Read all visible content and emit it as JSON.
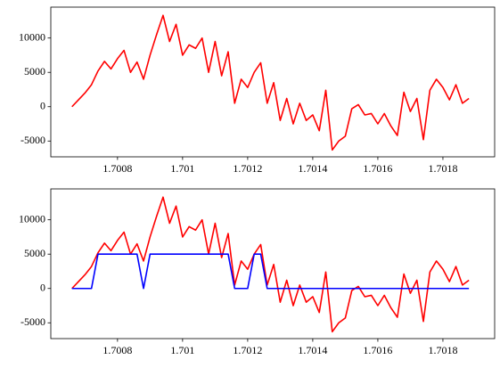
{
  "chart_data": [
    {
      "type": "line",
      "x": [
        1.70066,
        1.70068,
        1.7007,
        1.70072,
        1.70074,
        1.70076,
        1.70078,
        1.7008,
        1.70082,
        1.70084,
        1.70086,
        1.70088,
        1.7009,
        1.70092,
        1.70094,
        1.70096,
        1.70098,
        1.701,
        1.70102,
        1.70104,
        1.70106,
        1.70108,
        1.7011,
        1.70112,
        1.70114,
        1.70116,
        1.70118,
        1.7012,
        1.70122,
        1.70124,
        1.70126,
        1.70128,
        1.7013,
        1.70132,
        1.70134,
        1.70136,
        1.70138,
        1.7014,
        1.70142,
        1.70144,
        1.70146,
        1.70148,
        1.7015,
        1.70152,
        1.70154,
        1.70156,
        1.70158,
        1.7016,
        1.70162,
        1.70164,
        1.70166,
        1.70168,
        1.7017,
        1.70172,
        1.70174,
        1.70176,
        1.70178,
        1.7018,
        1.70182,
        1.70184,
        1.70186,
        1.70188
      ],
      "series": [
        {
          "color": "#ff0000",
          "values": [
            0,
            1000,
            2000,
            3200,
            5200,
            6600,
            5500,
            7000,
            8200,
            5000,
            6500,
            4000,
            7500,
            10500,
            13300,
            9500,
            12000,
            7500,
            9000,
            8500,
            10000,
            5000,
            9500,
            4500,
            8000,
            500,
            4000,
            2800,
            5000,
            6400,
            500,
            3500,
            -2000,
            1200,
            -2500,
            500,
            -2000,
            -1200,
            -3500,
            2400,
            -6300,
            -5000,
            -4300,
            -300,
            300,
            -1200,
            -1000,
            -2500,
            -1000,
            -2800,
            -4200,
            2100,
            -700,
            1200,
            -4800,
            2400,
            4000,
            2800,
            1000,
            3200,
            500,
            1200
          ]
        }
      ],
      "xlim": [
        1.700595,
        1.701959
      ],
      "ylim": [
        -7300,
        14500
      ],
      "xticks": [
        1.7008,
        1.701,
        1.7012,
        1.7014,
        1.7016,
        1.7018
      ],
      "yticks": [
        -5000,
        0,
        5000,
        10000
      ]
    },
    {
      "type": "line",
      "x": [
        1.70066,
        1.70068,
        1.7007,
        1.70072,
        1.70074,
        1.70076,
        1.70078,
        1.7008,
        1.70082,
        1.70084,
        1.70086,
        1.70088,
        1.7009,
        1.70092,
        1.70094,
        1.70096,
        1.70098,
        1.701,
        1.70102,
        1.70104,
        1.70106,
        1.70108,
        1.7011,
        1.70112,
        1.70114,
        1.70116,
        1.70118,
        1.7012,
        1.70122,
        1.70124,
        1.70126,
        1.70128,
        1.7013,
        1.70132,
        1.70134,
        1.70136,
        1.70138,
        1.7014,
        1.70142,
        1.70144,
        1.70146,
        1.70148,
        1.7015,
        1.70152,
        1.70154,
        1.70156,
        1.70158,
        1.7016,
        1.70162,
        1.70164,
        1.70166,
        1.70168,
        1.7017,
        1.70172,
        1.70174,
        1.70176,
        1.70178,
        1.7018,
        1.70182,
        1.70184,
        1.70186,
        1.70188
      ],
      "series": [
        {
          "color": "#ff0000",
          "values": [
            0,
            1000,
            2000,
            3200,
            5200,
            6600,
            5500,
            7000,
            8200,
            5000,
            6500,
            4000,
            7500,
            10500,
            13300,
            9500,
            12000,
            7500,
            9000,
            8500,
            10000,
            5000,
            9500,
            4500,
            8000,
            500,
            4000,
            2800,
            5000,
            6400,
            500,
            3500,
            -2000,
            1200,
            -2500,
            500,
            -2000,
            -1200,
            -3500,
            2400,
            -6300,
            -5000,
            -4300,
            -300,
            300,
            -1200,
            -1000,
            -2500,
            -1000,
            -2800,
            -4200,
            2100,
            -700,
            1200,
            -4800,
            2400,
            4000,
            2800,
            1000,
            3200,
            500,
            1200
          ]
        },
        {
          "color": "#0000ff",
          "values": [
            0,
            0,
            0,
            0,
            5000,
            5000,
            5000,
            5000,
            5000,
            5000,
            5000,
            0,
            5000,
            5000,
            5000,
            5000,
            5000,
            5000,
            5000,
            5000,
            5000,
            5000,
            5000,
            5000,
            5000,
            0,
            0,
            0,
            5000,
            5000,
            0,
            0,
            0,
            0,
            0,
            0,
            0,
            0,
            0,
            0,
            0,
            0,
            0,
            0,
            0,
            0,
            0,
            0,
            0,
            0,
            0,
            0,
            0,
            0,
            0,
            0,
            0,
            0,
            0,
            0,
            0,
            0
          ]
        }
      ],
      "xlim": [
        1.700595,
        1.701959
      ],
      "ylim": [
        -7300,
        14500
      ],
      "xticks": [
        1.7008,
        1.701,
        1.7012,
        1.7014,
        1.7016,
        1.7018
      ],
      "yticks": [
        -5000,
        0,
        5000,
        10000
      ]
    }
  ]
}
